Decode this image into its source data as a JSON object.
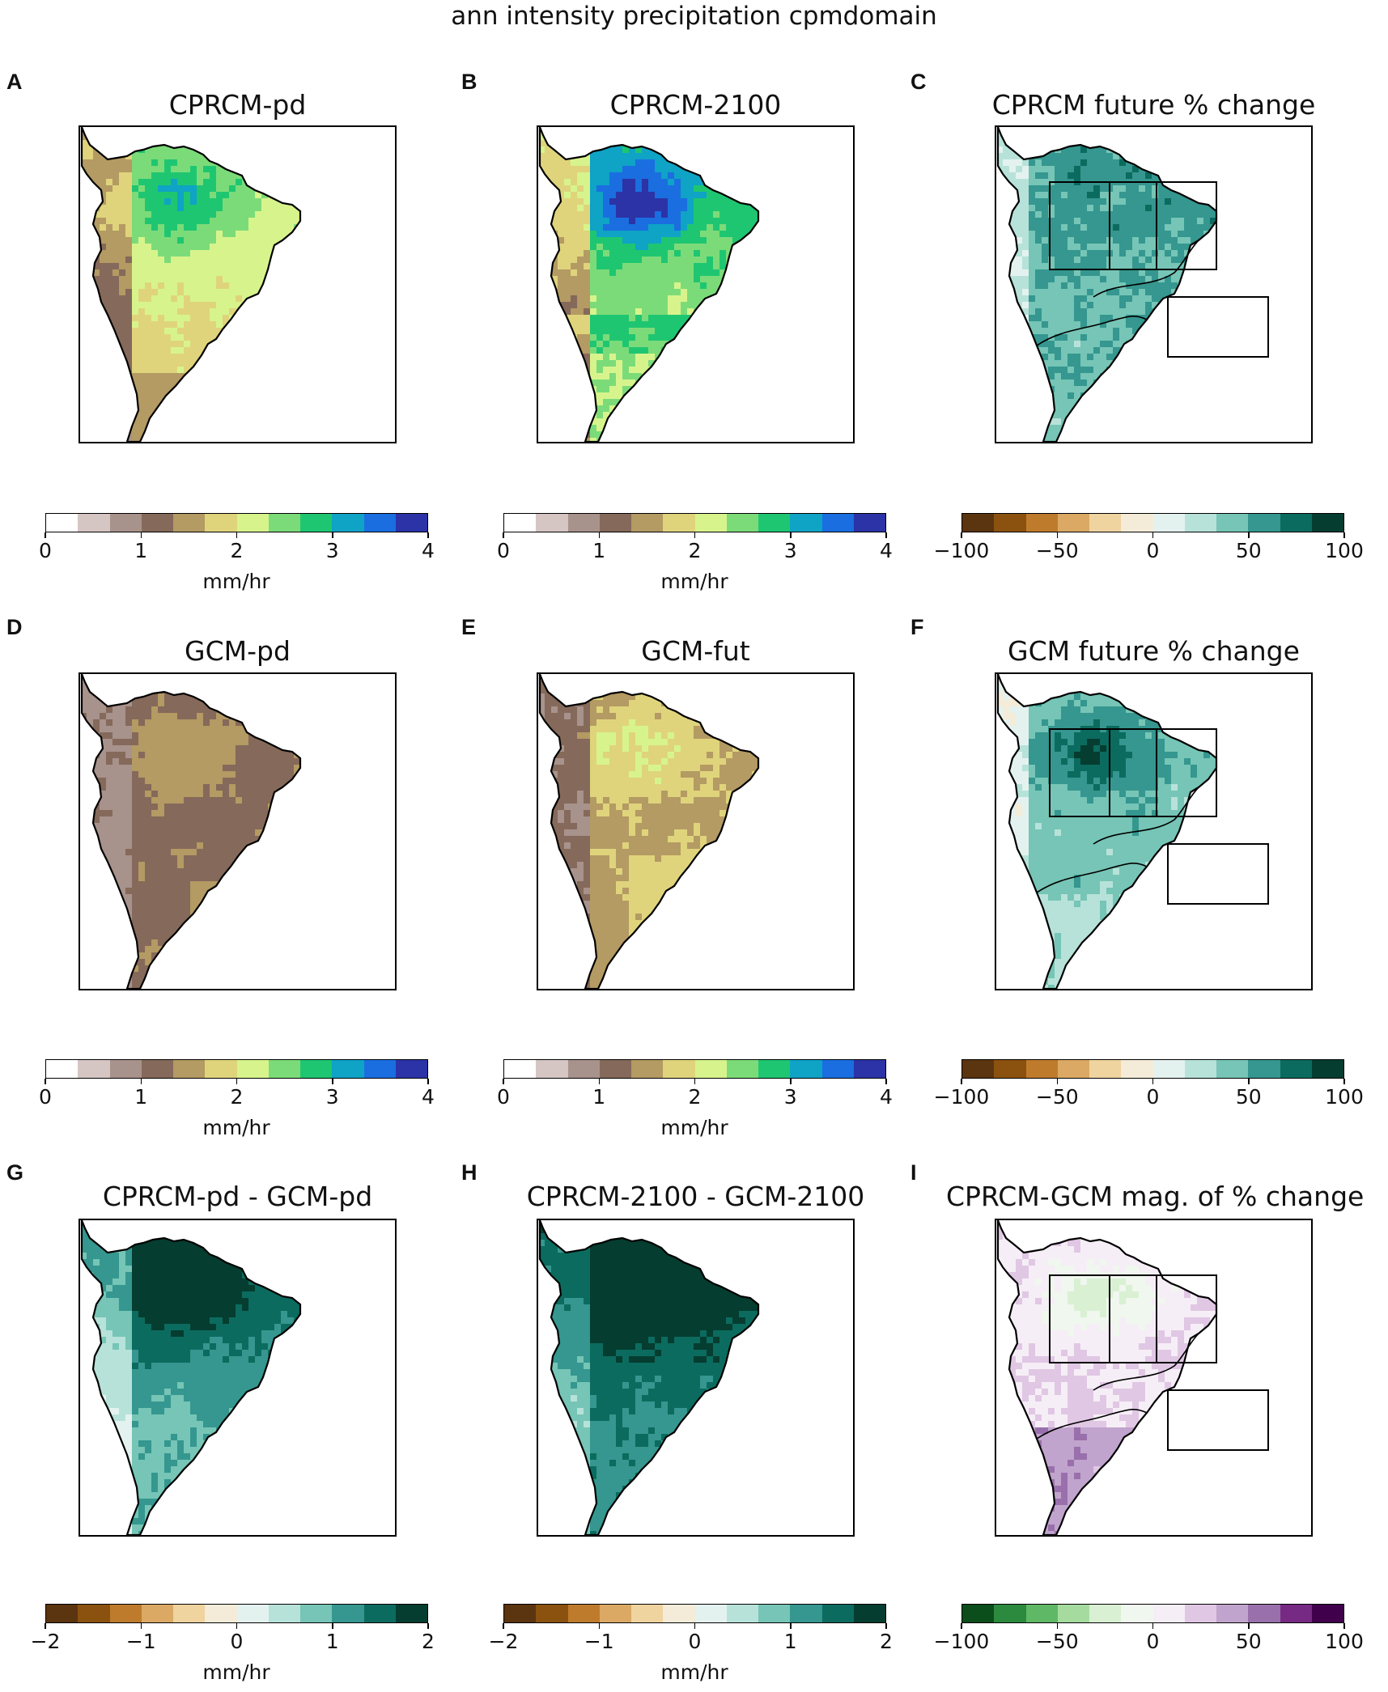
{
  "suptitle": "ann intensity precipitation cpmdomain",
  "colormaps": {
    "intensity": [
      "#ffffff",
      "#d5c6c4",
      "#a8928c",
      "#85695a",
      "#b49a63",
      "#dfd47c",
      "#d7f48c",
      "#7cdb79",
      "#1fc671",
      "#0fa3c6",
      "#1a6ee0",
      "#2b33a6"
    ],
    "change_brbg": [
      "#5b3410",
      "#8b520f",
      "#bf7b2c",
      "#dba964",
      "#efd4a0",
      "#f4ecd8",
      "#e4f2ef",
      "#b7e2d9",
      "#76c5b6",
      "#35978f",
      "#0c6b5f",
      "#053d30"
    ],
    "mag_prgn": [
      "#0b4d1b",
      "#2c8a3e",
      "#5fb865",
      "#a6dba0",
      "#d9f0d3",
      "#f0f7ee",
      "#f6eef6",
      "#e0c7e4",
      "#c1a4cd",
      "#9970ab",
      "#762a83",
      "#40004b"
    ]
  },
  "panels": [
    {
      "letter": "A",
      "title": "CPRCM-pd",
      "cmap": "intensity",
      "map_style": "mid",
      "ticks": [
        "0",
        "1",
        "2",
        "3",
        "4"
      ],
      "cbar_label": "mm/hr",
      "regions": false
    },
    {
      "letter": "B",
      "title": "CPRCM-2100",
      "cmap": "intensity",
      "map_style": "wet",
      "ticks": [
        "0",
        "1",
        "2",
        "3",
        "4"
      ],
      "cbar_label": "mm/hr",
      "regions": false
    },
    {
      "letter": "C",
      "title": "CPRCM future % change",
      "cmap": "change_brbg",
      "map_style": "change",
      "ticks": [
        "−100",
        "−50",
        "0",
        "50",
        "100"
      ],
      "cbar_label": "",
      "regions": true
    },
    {
      "letter": "D",
      "title": "GCM-pd",
      "cmap": "intensity",
      "map_style": "dry",
      "ticks": [
        "0",
        "1",
        "2",
        "3",
        "4"
      ],
      "cbar_label": "mm/hr",
      "regions": false
    },
    {
      "letter": "E",
      "title": "GCM-fut",
      "cmap": "intensity",
      "map_style": "drymid",
      "ticks": [
        "0",
        "1",
        "2",
        "3",
        "4"
      ],
      "cbar_label": "mm/hr",
      "regions": false
    },
    {
      "letter": "F",
      "title": "GCM future % change",
      "cmap": "change_brbg",
      "map_style": "change2",
      "ticks": [
        "−100",
        "−50",
        "0",
        "50",
        "100"
      ],
      "cbar_label": "",
      "regions": true
    },
    {
      "letter": "G",
      "title": "CPRCM-pd - GCM-pd",
      "cmap": "change_brbg",
      "map_style": "diff",
      "ticks": [
        "−2",
        "−1",
        "0",
        "1",
        "2"
      ],
      "cbar_label": "mm/hr",
      "regions": false
    },
    {
      "letter": "H",
      "title": "CPRCM-2100 - GCM-2100",
      "cmap": "change_brbg",
      "map_style": "diff2",
      "ticks": [
        "−2",
        "−1",
        "0",
        "1",
        "2"
      ],
      "cbar_label": "mm/hr",
      "regions": false
    },
    {
      "letter": "I",
      "title": "CPRCM-GCM mag. of % change",
      "cmap": "mag_prgn",
      "map_style": "mag",
      "ticks": [
        "−100",
        "−50",
        "0",
        "50",
        "100"
      ],
      "cbar_label": "",
      "regions": true
    }
  ],
  "chart_data": {
    "type": "heatmap",
    "title": "ann intensity precipitation cpmdomain",
    "panels": [
      "CPRCM-pd",
      "CPRCM-2100",
      "CPRCM future % change",
      "GCM-pd",
      "GCM-fut",
      "GCM future % change",
      "CPRCM-pd - GCM-pd",
      "CPRCM-2100 - GCM-2100",
      "CPRCM-GCM mag. of % change"
    ],
    "colorbars": [
      {
        "panels": [
          "A",
          "B",
          "D",
          "E"
        ],
        "range": [
          0,
          4
        ],
        "levels": 12,
        "label": "mm/hr"
      },
      {
        "panels": [
          "C",
          "F"
        ],
        "range": [
          -100,
          100
        ],
        "levels": 12,
        "label": ""
      },
      {
        "panels": [
          "G",
          "H"
        ],
        "range": [
          -2,
          2
        ],
        "levels": 12,
        "label": "mm/hr"
      },
      {
        "panels": [
          "I"
        ],
        "range": [
          -100,
          100
        ],
        "levels": 12,
        "label": ""
      }
    ]
  }
}
